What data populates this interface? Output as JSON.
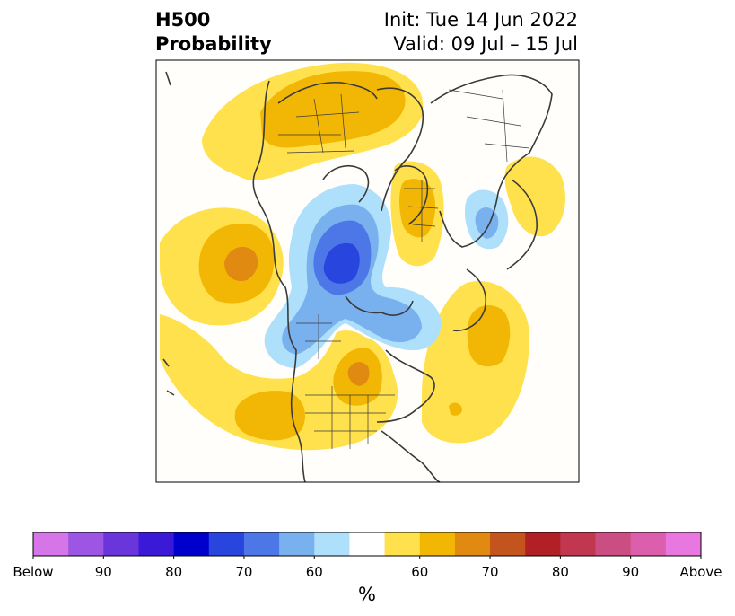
{
  "header": {
    "variable": "H500",
    "product": "Probability",
    "init": "Init: Tue 14 Jun 2022",
    "valid": "Valid: 09 Jul – 15 Jul"
  },
  "colorbar": {
    "unit": "%",
    "tick_labels": [
      "Below",
      "90",
      "80",
      "70",
      "60",
      "60",
      "70",
      "80",
      "90",
      "Above"
    ],
    "colors": [
      "#d575e8",
      "#9d55e3",
      "#6a35db",
      "#3a1ad6",
      "#0000cc",
      "#2845dd",
      "#4d77e6",
      "#79b1ef",
      "#aedffb",
      "#ffffff",
      "#ffe14d",
      "#f2b705",
      "#e08a12",
      "#c4541d",
      "#b12024",
      "#c23750",
      "#cb4e83",
      "#dc5fad",
      "#e878df"
    ]
  },
  "colors": {
    "yellow": "#ffe14d",
    "orange": "#f2b705",
    "dark_orange": "#e08a12",
    "light_blue": "#aedffb",
    "mid_blue": "#79b1ef",
    "blue": "#4d77e6",
    "deep_blue": "#2845dd",
    "coastline": "#3a3a3a"
  }
}
